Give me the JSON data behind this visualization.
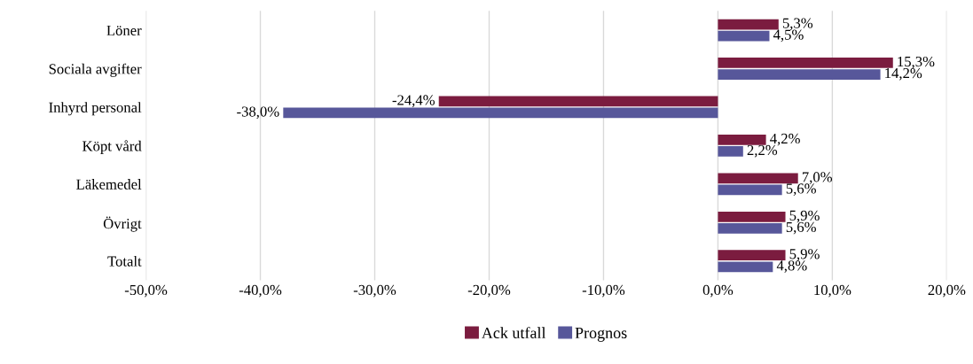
{
  "chart_data": {
    "type": "bar",
    "orientation": "horizontal",
    "categories": [
      "Löner",
      "Sociala avgifter",
      "Inhyrd personal",
      "Köpt vård",
      "Läkemedel",
      "Övrigt",
      "Totalt"
    ],
    "series": [
      {
        "name": "Ack utfall",
        "color": "#7b1c3f",
        "values": [
          5.3,
          15.3,
          -24.4,
          4.2,
          7.0,
          5.9,
          5.9
        ],
        "value_labels": [
          "5,3%",
          "15,3%",
          "-24,4%",
          "4,2%",
          "7,0%",
          "5,9%",
          "5,9%"
        ]
      },
      {
        "name": "Prognos",
        "color": "#57579a",
        "values": [
          4.5,
          14.2,
          -38.0,
          2.2,
          5.6,
          5.6,
          4.8
        ],
        "value_labels": [
          "4,5%",
          "14,2%",
          "-38,0%",
          "2,2%",
          "5,6%",
          "5,6%",
          "4,8%"
        ]
      }
    ],
    "xlim": [
      -50,
      20
    ],
    "xticks": [
      {
        "value": -50,
        "label": "-50,0%"
      },
      {
        "value": -40,
        "label": "-40,0%"
      },
      {
        "value": -30,
        "label": "-30,0%"
      },
      {
        "value": -20,
        "label": "-20,0%"
      },
      {
        "value": -10,
        "label": "-10,0%"
      },
      {
        "value": 0,
        "label": "0,0%"
      },
      {
        "value": 10,
        "label": "10,0%"
      },
      {
        "value": 20,
        "label": "20,0%"
      }
    ],
    "grid": "x",
    "legend": "bottom"
  }
}
